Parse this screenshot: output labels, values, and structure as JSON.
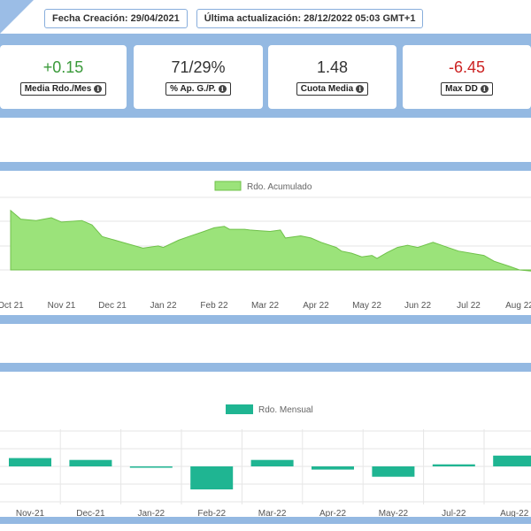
{
  "header": {
    "created": "Fecha Creación: 29/04/2021",
    "updated": "Última actualización: 28/12/2022 05:03 GMT+1"
  },
  "stats": [
    {
      "value": "+0.15",
      "label": "Media Rdo./Mes",
      "color": "#3a9a3a"
    },
    {
      "value": "71/29%",
      "label": "% Ap. G./P.",
      "color": "#333333"
    },
    {
      "value": "1.48",
      "label": "Cuota Media",
      "color": "#333333"
    },
    {
      "value": "-6.45",
      "label": "Max DD",
      "color": "#cc2222"
    }
  ],
  "colors": {
    "band": "#94b9e2",
    "area_fill": "#9be37a",
    "area_stroke": "#6fc14a",
    "bar_fill": "#1fb592",
    "grid": "#e6e6e6"
  },
  "chart_data": [
    {
      "type": "area",
      "legend": "Rdo. Acumulado",
      "legend_position": "top",
      "grid": true,
      "ylim": [
        0,
        1
      ],
      "categories": [
        "Oct 21",
        "Nov 21",
        "Dec 21",
        "Jan 22",
        "Feb 22",
        "Mar 22",
        "Apr 22",
        "May 22",
        "Jun 22",
        "Jul 22",
        "Aug 22"
      ],
      "x": [
        0,
        0.2,
        0.5,
        0.8,
        1.0,
        1.4,
        1.6,
        1.8,
        2.3,
        2.6,
        2.9,
        3.0,
        3.3,
        3.5,
        3.8,
        4.0,
        4.2,
        4.3,
        4.6,
        4.7,
        4.9,
        5.1,
        5.3,
        5.4,
        5.7,
        5.9,
        6.1,
        6.4,
        6.5,
        6.7,
        6.9,
        7.1,
        7.2,
        7.4,
        7.6,
        7.8,
        8.0,
        8.3,
        8.8,
        9.3,
        9.5,
        9.8,
        10.0,
        10.3,
        10.6,
        11.0
      ],
      "values": [
        0.82,
        0.7,
        0.68,
        0.72,
        0.66,
        0.68,
        0.62,
        0.46,
        0.36,
        0.3,
        0.33,
        0.31,
        0.41,
        0.46,
        0.53,
        0.58,
        0.6,
        0.56,
        0.56,
        0.55,
        0.54,
        0.53,
        0.55,
        0.44,
        0.47,
        0.44,
        0.38,
        0.31,
        0.26,
        0.23,
        0.18,
        0.2,
        0.16,
        0.24,
        0.31,
        0.34,
        0.31,
        0.38,
        0.26,
        0.2,
        0.12,
        0.05,
        0.0,
        -0.02,
        -0.07,
        0.01
      ]
    },
    {
      "type": "bar",
      "legend": "Rdo. Mensual",
      "legend_position": "top",
      "grid": true,
      "ylim": [
        -1,
        1
      ],
      "categories": [
        "Nov-21",
        "Dec-21",
        "Jan-22",
        "Feb-22",
        "Mar-22",
        "Apr-22",
        "May-22",
        "Jul-22",
        "Aug-22"
      ],
      "values": [
        0.36,
        0.28,
        -0.04,
        -1.0,
        0.28,
        -0.14,
        -0.45,
        0.09,
        0.47
      ]
    }
  ]
}
